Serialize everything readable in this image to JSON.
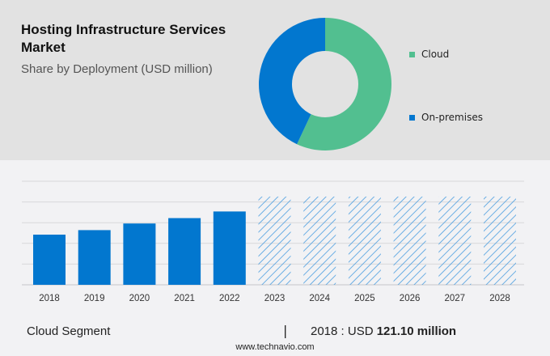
{
  "header": {
    "title": "Hosting Infrastructure Services Market",
    "subtitle": "Share by Deployment (USD million)"
  },
  "colors": {
    "cloud": "#52bf90",
    "on_premises": "#0277cf",
    "bar": "#0277cf",
    "hatch": "#4a9de0",
    "grid": "#d8d8da",
    "axis_text": "#333333"
  },
  "chart_data": [
    {
      "type": "pie",
      "subtype": "donut",
      "title": "Share by Deployment (USD million)",
      "labels": [
        "Cloud",
        "On-premises"
      ],
      "values": [
        57,
        43
      ],
      "legend": "right"
    },
    {
      "type": "bar",
      "title": "Cloud Segment",
      "categories": [
        "2018",
        "2019",
        "2020",
        "2021",
        "2022",
        "2023",
        "2024",
        "2025",
        "2026",
        "2027",
        "2028"
      ],
      "values": [
        121.1,
        132,
        148,
        161,
        177,
        null,
        null,
        null,
        null,
        null,
        null
      ],
      "forecast_categories": [
        "2023",
        "2024",
        "2025",
        "2026",
        "2027",
        "2028"
      ],
      "forecast_placeholder_value": 213,
      "ylim": [
        0,
        250
      ],
      "grid_step": 50,
      "grid": true,
      "xlabel": "",
      "ylabel": ""
    }
  ],
  "footer": {
    "segment": "Cloud Segment",
    "separator": "|",
    "year_label": "2018 : USD ",
    "value": "121.10 million",
    "source": "www.technavio.com"
  }
}
